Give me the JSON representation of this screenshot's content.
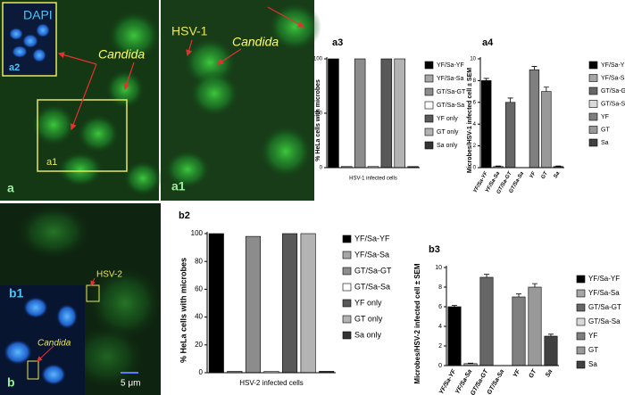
{
  "images": {
    "a": {
      "stain": "DAPI",
      "inset": "a2",
      "organism": "Candida",
      "box": "a1",
      "panel": "a"
    },
    "a1": {
      "virus": "HSV-1",
      "organism": "Candida",
      "panel": "a1"
    },
    "b": {
      "inset": "b1",
      "virus": "HSV-2",
      "organism": "Candida",
      "panel": "b",
      "scale": "5 μm"
    }
  },
  "chart_data": [
    {
      "type": "bar",
      "label": "a3",
      "y_label": "% HeLa cells with microbes",
      "x_label": "HSV-1 infected cells",
      "categories": [
        "YF/Sa-YF",
        "YF/Sa-Sa",
        "GT/Sa-GT",
        "GT/Sa-Sa",
        "YF only",
        "GT only",
        "Sa only"
      ],
      "values": [
        100,
        1,
        100,
        1,
        100,
        100,
        1
      ],
      "colors": [
        "#000000",
        "#a6a6a6",
        "#8c8c8c",
        "#ffffff",
        "#595959",
        "#b3b3b3",
        "#333333"
      ],
      "ylim": [
        0,
        100
      ],
      "yticks": [
        0,
        50,
        100
      ],
      "tick_labels": false
    },
    {
      "type": "bar",
      "label": "a4",
      "y_label": "Microbes/HSV-1 infected cell ± SEM",
      "categories": [
        "YF/Sa-YF",
        "YF/Sa-Sa",
        "GT/Sa-GT",
        "GT/Sa-Sa",
        "YF",
        "GT",
        "Sa"
      ],
      "values": [
        8,
        0.1,
        6,
        0,
        9,
        7,
        0.1
      ],
      "errors": [
        0.2,
        0.05,
        0.4,
        0,
        0.3,
        0.4,
        0.05
      ],
      "colors": [
        "#000000",
        "#a6a6a6",
        "#666666",
        "#d9d9d9",
        "#7f7f7f",
        "#999999",
        "#404040"
      ],
      "ylim": [
        0,
        10
      ],
      "yticks": [
        0,
        2,
        4,
        6,
        8,
        10
      ],
      "tick_labels": true
    },
    {
      "type": "bar",
      "label": "b2",
      "y_label": "% HeLa cells with microbes",
      "x_label": "HSV-2 infected cells",
      "categories": [
        "YF/Sa-YF",
        "YF/Sa-Sa",
        "GT/Sa-GT",
        "GT/Sa-Sa",
        "YF only",
        "GT only",
        "Sa only"
      ],
      "values": [
        100,
        1,
        98,
        1,
        100,
        100,
        1
      ],
      "colors": [
        "#000000",
        "#a6a6a6",
        "#8c8c8c",
        "#ffffff",
        "#595959",
        "#b3b3b3",
        "#333333"
      ],
      "ylim": [
        0,
        100
      ],
      "yticks": [
        0,
        20,
        40,
        60,
        80,
        100
      ],
      "tick_labels": false
    },
    {
      "type": "bar",
      "label": "b3",
      "y_label": "Microbes/HSV-2 infected cell ± SEM",
      "categories": [
        "YF/Sa-YF",
        "YF/Sa-Sa",
        "GT/Sa-GT",
        "GT/Sa-Sa",
        "YF",
        "GT",
        "Sa"
      ],
      "values": [
        6,
        0.2,
        9,
        0,
        7,
        8,
        3
      ],
      "errors": [
        0.15,
        0.05,
        0.3,
        0,
        0.3,
        0.35,
        0.2
      ],
      "colors": [
        "#000000",
        "#a6a6a6",
        "#666666",
        "#d9d9d9",
        "#7f7f7f",
        "#999999",
        "#404040"
      ],
      "ylim": [
        0,
        10
      ],
      "yticks": [
        0,
        2,
        4,
        6,
        8,
        10
      ],
      "tick_labels": true
    }
  ]
}
